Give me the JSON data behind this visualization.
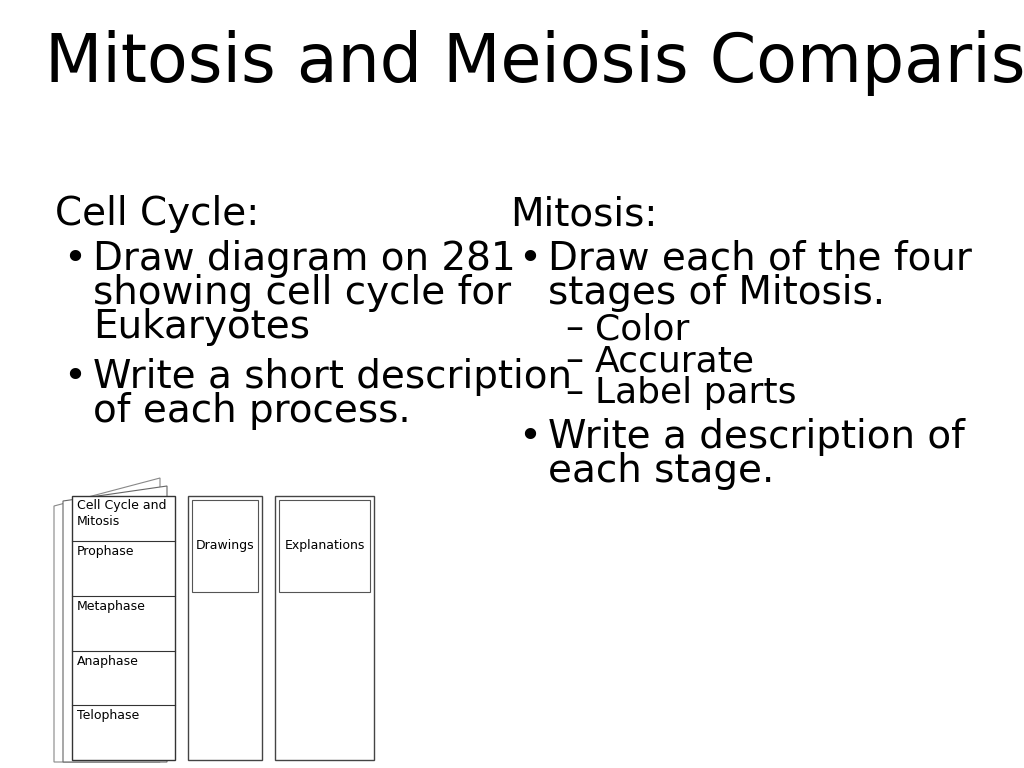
{
  "title": "Mitosis and Meiosis Comparison",
  "bg_color": "#ffffff",
  "text_color": "#000000",
  "left_heading": "Cell Cycle:",
  "left_bullet1_lines": [
    "Draw diagram on 281",
    "showing cell cycle for",
    "Eukaryotes"
  ],
  "left_bullet2_lines": [
    "Write a short description",
    "of each process."
  ],
  "right_heading": "Mitosis:",
  "right_bullet1_lines": [
    "Draw each of the four",
    "stages of Mitosis."
  ],
  "right_sub_bullets": [
    "Color",
    "Accurate",
    "Label parts"
  ],
  "right_bullet2_lines": [
    "Write a description of",
    "each stage."
  ],
  "table_headers": [
    "Cell Cycle and\nMitosis",
    "Drawings",
    "Explanations"
  ],
  "table_rows": [
    "Prophase",
    "Metaphase",
    "Anaphase",
    "Telophase"
  ],
  "title_fontsize": 48,
  "heading_fontsize": 28,
  "bullet_fontsize": 28,
  "sub_bullet_fontsize": 26,
  "table_fontsize": 9
}
